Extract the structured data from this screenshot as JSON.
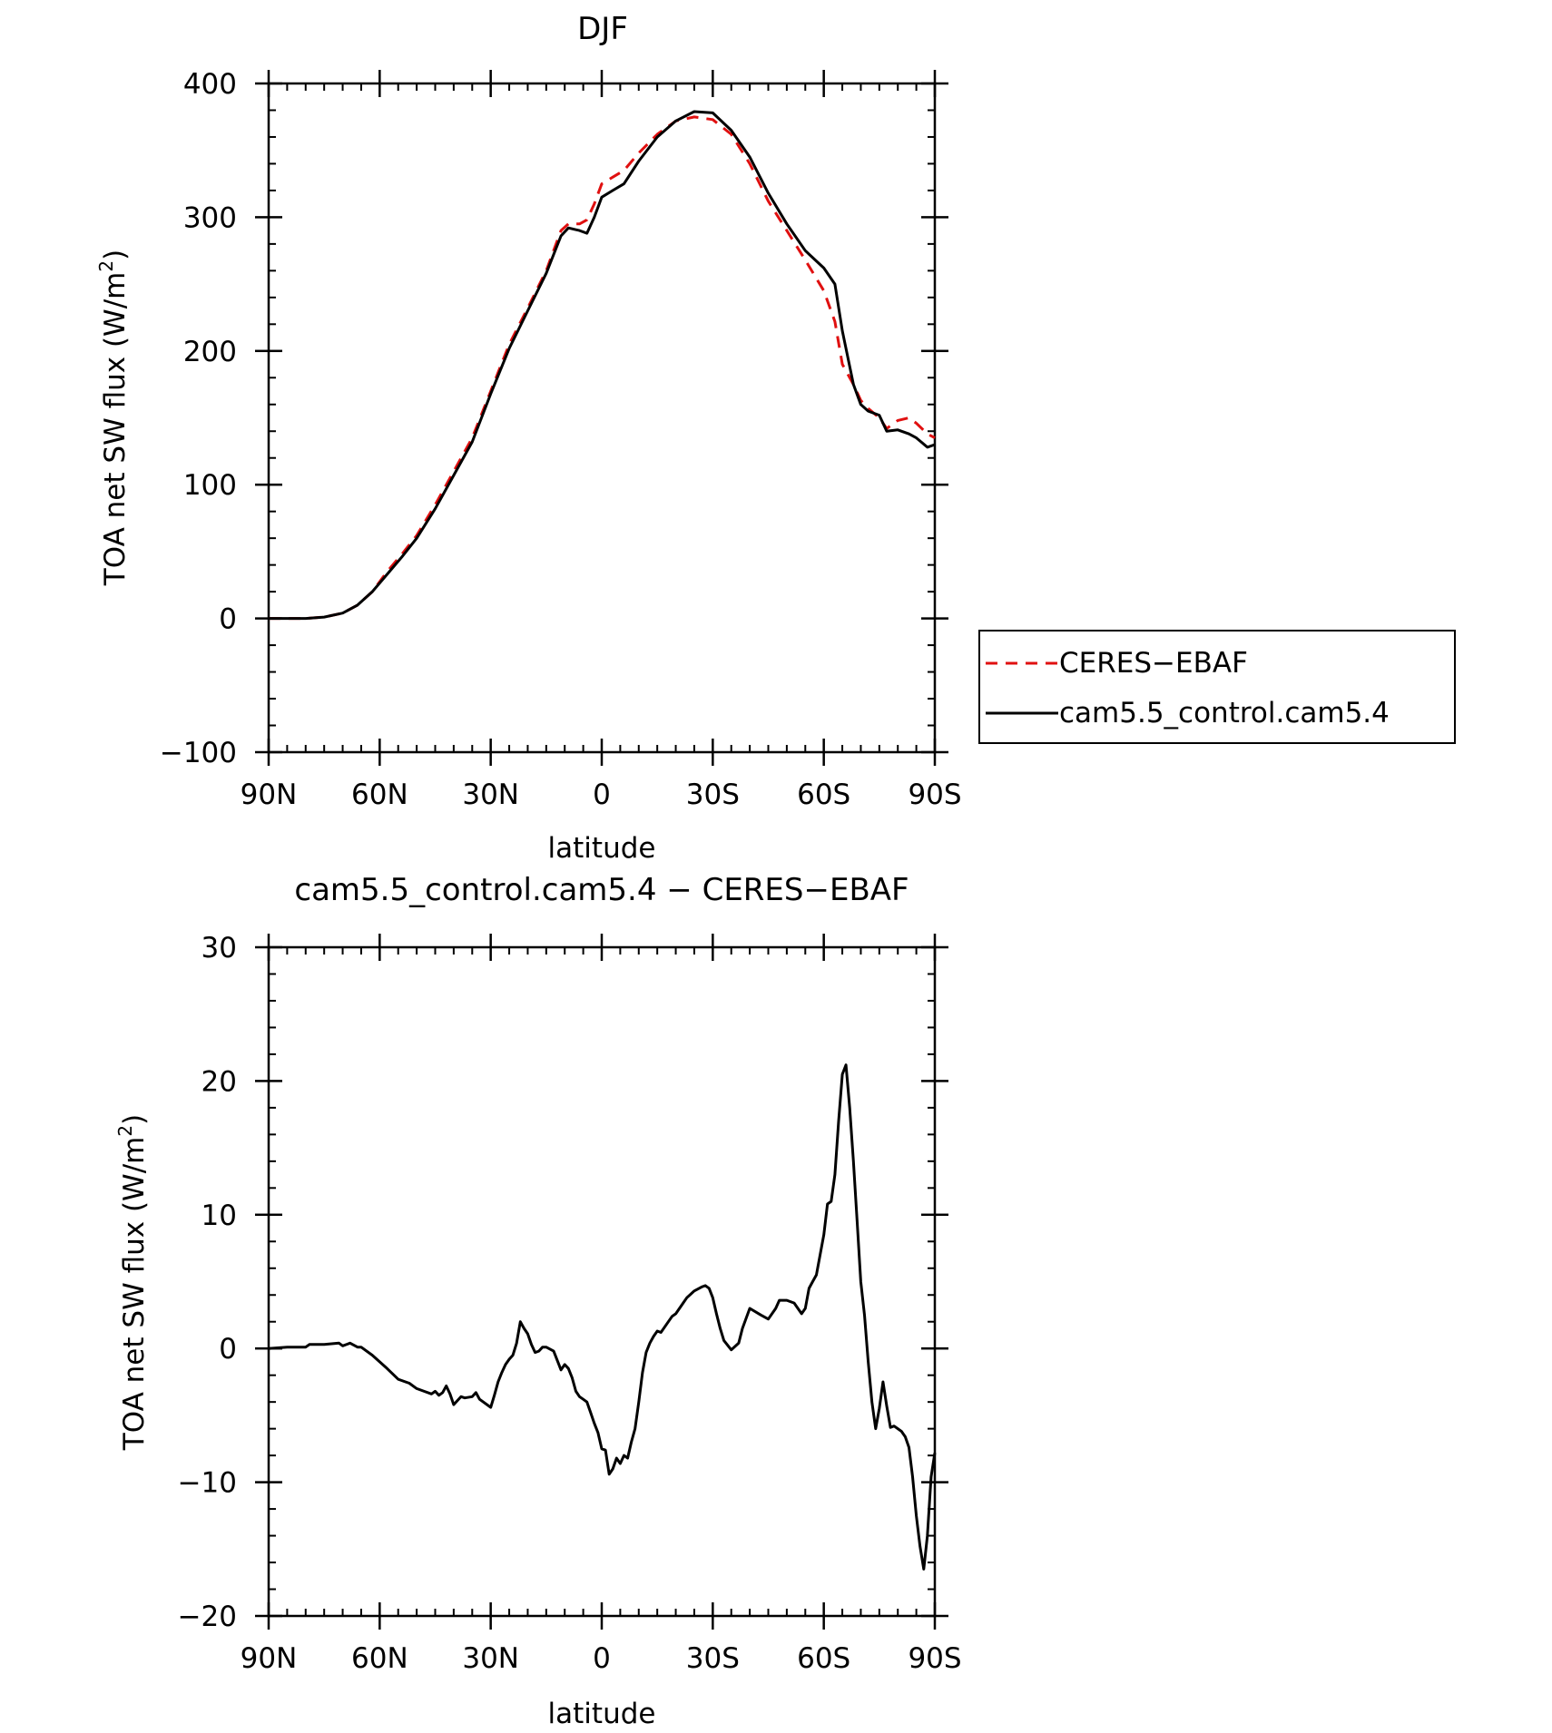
{
  "colors": {
    "obs": "#e01010",
    "model": "#000000",
    "axis": "#000000"
  },
  "chart_data": [
    {
      "type": "line",
      "title": "DJF",
      "xlabel": "latitude",
      "ylabel": "TOA net SW flux (W/m²)",
      "ylabel_parts": {
        "main": "TOA net SW flux (W/m",
        "sup": "2",
        "close": ")"
      },
      "xlim": [
        -90,
        90
      ],
      "ylim": [
        -100,
        400
      ],
      "x_ticks": [
        {
          "value": -90,
          "label": "90N"
        },
        {
          "value": -60,
          "label": "60N"
        },
        {
          "value": -30,
          "label": "30N"
        },
        {
          "value": 0,
          "label": "0"
        },
        {
          "value": 30,
          "label": "30S"
        },
        {
          "value": 60,
          "label": "60S"
        },
        {
          "value": 90,
          "label": "90S"
        }
      ],
      "y_ticks": [
        {
          "value": -100,
          "label": "−100"
        },
        {
          "value": 0,
          "label": "0"
        },
        {
          "value": 100,
          "label": "100"
        },
        {
          "value": 200,
          "label": "200"
        },
        {
          "value": 300,
          "label": "300"
        },
        {
          "value": 400,
          "label": "400"
        }
      ],
      "legend": {
        "position": "right",
        "entries": [
          {
            "label": "CERES−EBAF",
            "series": "CERES-EBAF",
            "style": "dashed",
            "color": "#e01010"
          },
          {
            "label": "cam5.5_control.cam5.4",
            "series": "cam5.5_control.cam5.4",
            "style": "solid",
            "color": "#000000"
          }
        ]
      },
      "series": [
        {
          "name": "CERES-EBAF",
          "style": "dashed",
          "color": "#e01010",
          "x": [
            -90,
            -85,
            -80,
            -75,
            -70,
            -66,
            -62,
            -58,
            -54,
            -50,
            -45,
            -40,
            -35,
            -30,
            -25,
            -20,
            -15,
            -11,
            -9,
            -6,
            -4,
            -2,
            0,
            3,
            6,
            10,
            15,
            20,
            25,
            30,
            35,
            40,
            45,
            50,
            55,
            60,
            63,
            65,
            68,
            70,
            72,
            75,
            77,
            80,
            83,
            85,
            88,
            90
          ],
          "y": [
            0,
            0,
            0,
            1,
            4,
            10,
            20,
            35,
            48,
            62,
            85,
            110,
            135,
            170,
            205,
            232,
            260,
            290,
            295,
            295,
            298,
            310,
            325,
            330,
            335,
            348,
            362,
            372,
            375,
            373,
            362,
            340,
            312,
            290,
            268,
            245,
            222,
            190,
            175,
            163,
            157,
            150,
            142,
            148,
            150,
            146,
            138,
            135
          ]
        },
        {
          "name": "cam5.5_control.cam5.4",
          "style": "solid",
          "color": "#000000",
          "x": [
            -90,
            -85,
            -80,
            -75,
            -70,
            -66,
            -62,
            -58,
            -54,
            -50,
            -45,
            -40,
            -35,
            -30,
            -25,
            -20,
            -15,
            -11,
            -9,
            -6,
            -4,
            -2,
            0,
            3,
            6,
            10,
            15,
            20,
            25,
            30,
            35,
            40,
            45,
            50,
            55,
            60,
            63,
            65,
            68,
            70,
            72,
            75,
            77,
            80,
            83,
            85,
            88,
            90
          ],
          "y": [
            0,
            0,
            0,
            1,
            4,
            10,
            20,
            33,
            46,
            60,
            82,
            107,
            132,
            168,
            202,
            230,
            258,
            286,
            292,
            290,
            288,
            300,
            315,
            320,
            325,
            342,
            360,
            372,
            379,
            378,
            365,
            345,
            318,
            295,
            275,
            262,
            250,
            215,
            175,
            160,
            155,
            152,
            140,
            141,
            138,
            135,
            128,
            130
          ]
        }
      ]
    },
    {
      "type": "line",
      "title": "cam5.5_control.cam5.4 − CERES−EBAF",
      "xlabel": "latitude",
      "ylabel": "TOA net SW flux (W/m²)",
      "ylabel_parts": {
        "main": "TOA net SW flux (W/m",
        "sup": "2",
        "close": ")"
      },
      "xlim": [
        -90,
        90
      ],
      "ylim": [
        -20,
        30
      ],
      "x_ticks": [
        {
          "value": -90,
          "label": "90N"
        },
        {
          "value": -60,
          "label": "60N"
        },
        {
          "value": -30,
          "label": "30N"
        },
        {
          "value": 0,
          "label": "0"
        },
        {
          "value": 30,
          "label": "30S"
        },
        {
          "value": 60,
          "label": "60S"
        },
        {
          "value": 90,
          "label": "90S"
        }
      ],
      "y_ticks": [
        {
          "value": -20,
          "label": "−20"
        },
        {
          "value": -10,
          "label": "−10"
        },
        {
          "value": 0,
          "label": "0"
        },
        {
          "value": 10,
          "label": "10"
        },
        {
          "value": 20,
          "label": "20"
        },
        {
          "value": 30,
          "label": "30"
        }
      ],
      "series": [
        {
          "name": "cam5.5_control.cam5.4 − CERES−EBAF",
          "style": "solid",
          "color": "#000000",
          "x": [
            -90,
            -85,
            -80,
            -79,
            -75,
            -71,
            -70,
            -68,
            -66,
            -65,
            -62,
            -58,
            -55,
            -52,
            -50,
            -48,
            -46,
            -45,
            -44,
            -43,
            -42,
            -41,
            -40,
            -38,
            -37,
            -35,
            -34,
            -33,
            -30,
            -29,
            -28,
            -27,
            -26,
            -25,
            -24,
            -23,
            -22,
            -21,
            -20,
            -19,
            -18,
            -17,
            -16,
            -15,
            -13,
            -11,
            -10,
            -9,
            -8,
            -7,
            -6,
            -5,
            -4,
            -3,
            -2,
            -1,
            0,
            1,
            2,
            3,
            4,
            5,
            6,
            7,
            8,
            9,
            10,
            11,
            12,
            13,
            14,
            15,
            16,
            18,
            19,
            20,
            22,
            23,
            25,
            27,
            28,
            29,
            30,
            31,
            32,
            33,
            35,
            37,
            38,
            40,
            43,
            45,
            47,
            48,
            50,
            52,
            53,
            54,
            55,
            56,
            57,
            58,
            59,
            60,
            61,
            62,
            63,
            64,
            65,
            66,
            67,
            68,
            69,
            70,
            71,
            72,
            73,
            74,
            75,
            76,
            77,
            78,
            79,
            80,
            81,
            82,
            83,
            84,
            85,
            86,
            87,
            88,
            89,
            90
          ],
          "y": [
            0,
            0.1,
            0.1,
            0.3,
            0.3,
            0.4,
            0.2,
            0.4,
            0.1,
            0.1,
            -0.5,
            -1.5,
            -2.3,
            -2.6,
            -3.0,
            -3.2,
            -3.4,
            -3.2,
            -3.5,
            -3.3,
            -2.8,
            -3.4,
            -4.2,
            -3.6,
            -3.7,
            -3.6,
            -3.3,
            -3.8,
            -4.4,
            -3.5,
            -2.5,
            -1.8,
            -1.2,
            -0.8,
            -0.5,
            0.4,
            2.0,
            1.5,
            1.1,
            0.3,
            -0.3,
            -0.2,
            0.1,
            0.1,
            -0.2,
            -1.6,
            -1.2,
            -1.5,
            -2.2,
            -3.2,
            -3.6,
            -3.8,
            -4.0,
            -4.8,
            -5.6,
            -6.3,
            -7.5,
            -7.6,
            -9.4,
            -9.0,
            -8.2,
            -8.6,
            -8.0,
            -8.2,
            -7.0,
            -6.0,
            -4.0,
            -1.8,
            -0.3,
            0.4,
            0.9,
            1.3,
            1.2,
            2.0,
            2.4,
            2.6,
            3.4,
            3.8,
            4.3,
            4.6,
            4.7,
            4.5,
            3.8,
            2.6,
            1.5,
            0.6,
            -0.1,
            0.4,
            1.5,
            3.0,
            2.5,
            2.2,
            3.0,
            3.6,
            3.6,
            3.4,
            3.0,
            2.6,
            3.0,
            4.5,
            5.0,
            5.5,
            7.0,
            8.5,
            10.8,
            11.0,
            13.0,
            17.0,
            20.5,
            21.2,
            18.0,
            14.0,
            9.5,
            5.0,
            2.5,
            -1.0,
            -4.0,
            -6.0,
            -4.5,
            -2.5,
            -4.3,
            -5.9,
            -5.8,
            -6.0,
            -6.2,
            -6.6,
            -7.4,
            -9.6,
            -12.5,
            -14.8,
            -16.5,
            -14.0,
            -9.6,
            -7.8
          ]
        }
      ]
    }
  ]
}
